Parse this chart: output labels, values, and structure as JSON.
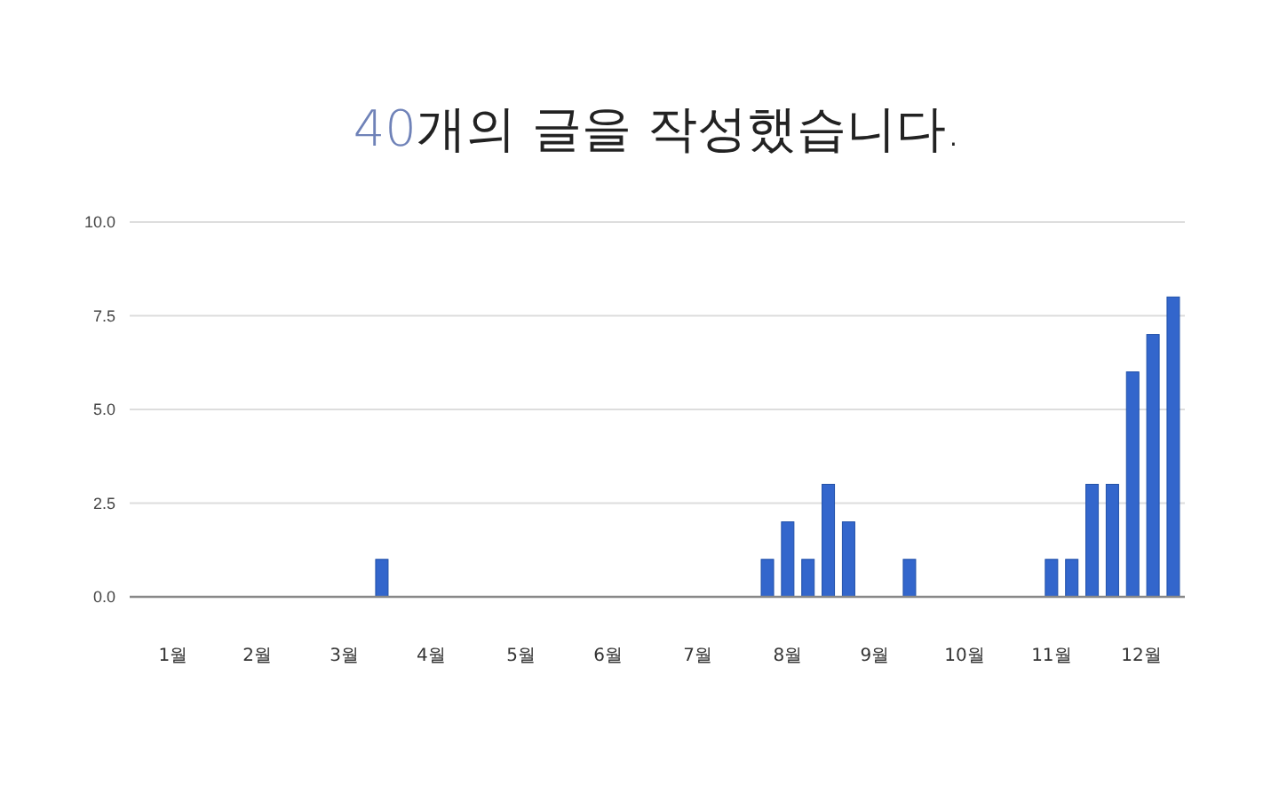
{
  "chart_data": {
    "type": "bar",
    "title": "40개의 글을 작성했습니다.",
    "x": [
      "--03-29",
      "--08-09",
      "--08-16",
      "--08-23",
      "--08-30",
      "--09-06",
      "--09-27",
      "--11-15",
      "--11-22",
      "--11-29",
      "--12-06",
      "--12-13",
      "--12-20",
      "--12-27"
    ],
    "values": [
      1,
      1,
      2,
      1,
      3,
      2,
      1,
      1,
      1,
      3,
      3,
      6,
      7,
      8
    ],
    "color": "#3366cc",
    "xlim": [
      "--01-01",
      "--12-31"
    ],
    "xticks": [
      {
        "value": "--01-16",
        "label": "1월"
      },
      {
        "value": "--02-14",
        "label": "2월"
      },
      {
        "value": "--03-16",
        "label": "3월"
      },
      {
        "value": "--04-15",
        "label": "4월"
      },
      {
        "value": "--05-16",
        "label": "5월"
      },
      {
        "value": "--06-15",
        "label": "6월"
      },
      {
        "value": "--07-16",
        "label": "7월"
      },
      {
        "value": "--08-16",
        "label": "8월"
      },
      {
        "value": "--09-15",
        "label": "9월"
      },
      {
        "value": "--10-16",
        "label": "10월"
      },
      {
        "value": "--11-15",
        "label": "11월"
      },
      {
        "value": "--12-16",
        "label": "12월"
      }
    ],
    "ylim": [
      0,
      10
    ],
    "yticks": [
      {
        "value": 0,
        "label": "0.0"
      },
      {
        "value": 2.5,
        "label": "2.5"
      },
      {
        "value": 5,
        "label": "5.0"
      },
      {
        "value": 7.5,
        "label": "7.5"
      },
      {
        "value": 10,
        "label": "10.0"
      }
    ],
    "grid": "y"
  }
}
